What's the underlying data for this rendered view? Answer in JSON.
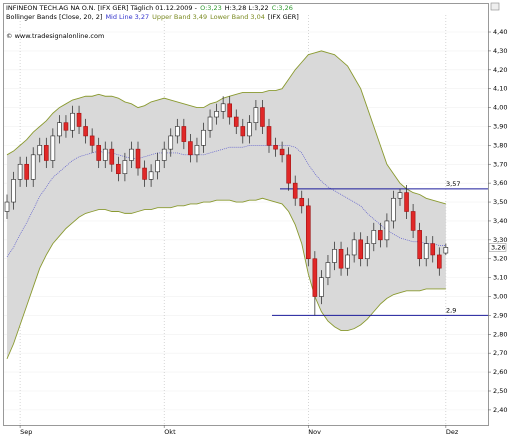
{
  "chart_data": {
    "type": "candlestick",
    "header": [
      [
        {
          "text": "INFINEON TECH.AG NA O.N. [IFX GER]  Täglich 01.12.2009 -",
          "color": "#000000"
        },
        {
          "text": "O:3,23",
          "color": "#2e9a2e"
        },
        {
          "text": "H:3,28 L:3,22",
          "color": "#000000"
        },
        {
          "text": "C:3,26",
          "color": "#2e9a2e"
        }
      ],
      [
        {
          "text": "Bollinger Bands [Close, 20, 2]",
          "color": "#000000"
        },
        {
          "text": "Mid Line 3,27",
          "color": "#3333cc"
        },
        {
          "text": "Upper Band 3,49",
          "color": "#7a8a20"
        },
        {
          "text": "Lower Band 3,04",
          "color": "#7a8a20"
        },
        {
          "text": "[IFX GER]",
          "color": "#000000"
        }
      ]
    ],
    "copyright": "© www.tradesignalonline.com",
    "ylim": [
      2.32,
      4.49
    ],
    "yticks": [
      {
        "value": 2.4,
        "label": "2,40"
      },
      {
        "value": 2.5,
        "label": "2,50"
      },
      {
        "value": 2.6,
        "label": "2,60"
      },
      {
        "value": 2.7,
        "label": "2,70"
      },
      {
        "value": 2.8,
        "label": "2,80"
      },
      {
        "value": 2.9,
        "label": "2,90"
      },
      {
        "value": 3.0,
        "label": "3,00"
      },
      {
        "value": 3.1,
        "label": "3,10"
      },
      {
        "value": 3.2,
        "label": "3,20"
      },
      {
        "value": 3.3,
        "label": "3,30"
      },
      {
        "value": 3.4,
        "label": "3,40"
      },
      {
        "value": 3.5,
        "label": "3,50"
      },
      {
        "value": 3.6,
        "label": "3,60"
      },
      {
        "value": 3.7,
        "label": "3,70"
      },
      {
        "value": 3.8,
        "label": "3,80"
      },
      {
        "value": 3.9,
        "label": "3,90"
      },
      {
        "value": 4.0,
        "label": "4,00"
      },
      {
        "value": 4.1,
        "label": "4,10"
      },
      {
        "value": 4.2,
        "label": "4,20"
      },
      {
        "value": 4.3,
        "label": "4,30"
      },
      {
        "value": 4.4,
        "label": "4,40"
      }
    ],
    "xticks": [
      {
        "value": 2,
        "label": "Sep"
      },
      {
        "value": 24,
        "label": "Okt"
      },
      {
        "value": 46,
        "label": "Nov"
      },
      {
        "value": 67,
        "label": "Dez"
      }
    ],
    "up_color": "#ffffff",
    "down_color": "#e02828",
    "open": [
      3.45,
      3.5,
      3.62,
      3.7,
      3.62,
      3.75,
      3.8,
      3.72,
      3.85,
      3.92,
      3.88,
      3.97,
      3.9,
      3.85,
      3.8,
      3.72,
      3.78,
      3.7,
      3.65,
      3.72,
      3.78,
      3.68,
      3.62,
      3.66,
      3.72,
      3.78,
      3.85,
      3.9,
      3.82,
      3.75,
      3.8,
      3.88,
      3.95,
      3.98,
      4.02,
      3.95,
      3.9,
      3.85,
      3.92,
      4.0,
      3.9,
      3.8,
      3.78,
      3.75,
      3.6,
      3.52,
      3.48,
      3.2,
      3.0,
      3.1,
      3.18,
      3.25,
      3.15,
      3.22,
      3.3,
      3.2,
      3.28,
      3.35,
      3.3,
      3.4,
      3.52,
      3.55,
      3.45,
      3.35,
      3.2,
      3.28,
      3.22,
      3.23
    ],
    "high": [
      3.54,
      3.66,
      3.74,
      3.74,
      3.79,
      3.84,
      3.84,
      3.89,
      3.96,
      3.96,
      4.01,
      4.01,
      3.94,
      3.89,
      3.84,
      3.82,
      3.82,
      3.74,
      3.76,
      3.82,
      3.82,
      3.72,
      3.7,
      3.76,
      3.82,
      3.89,
      3.94,
      3.94,
      3.86,
      3.84,
      3.92,
      3.99,
      4.02,
      4.06,
      4.06,
      3.99,
      3.94,
      3.96,
      4.04,
      4.04,
      3.94,
      3.84,
      3.82,
      3.79,
      3.64,
      3.56,
      3.52,
      3.24,
      3.14,
      3.22,
      3.29,
      3.29,
      3.26,
      3.34,
      3.34,
      3.32,
      3.39,
      3.39,
      3.44,
      3.56,
      3.57,
      3.59,
      3.49,
      3.39,
      3.32,
      3.32,
      3.26,
      3.28
    ],
    "low": [
      3.41,
      3.46,
      3.58,
      3.58,
      3.58,
      3.71,
      3.68,
      3.68,
      3.81,
      3.84,
      3.84,
      3.86,
      3.81,
      3.76,
      3.68,
      3.68,
      3.66,
      3.61,
      3.61,
      3.68,
      3.64,
      3.58,
      3.58,
      3.62,
      3.68,
      3.74,
      3.81,
      3.78,
      3.71,
      3.71,
      3.76,
      3.84,
      3.91,
      3.94,
      3.91,
      3.86,
      3.81,
      3.81,
      3.88,
      3.86,
      3.76,
      3.74,
      3.71,
      3.56,
      3.48,
      3.44,
      3.16,
      2.9,
      2.96,
      3.06,
      3.14,
      3.11,
      3.11,
      3.18,
      3.16,
      3.16,
      3.24,
      3.26,
      3.26,
      3.36,
      3.48,
      3.41,
      3.31,
      3.16,
      3.16,
      3.18,
      3.11,
      3.22
    ],
    "close": [
      3.5,
      3.62,
      3.7,
      3.62,
      3.75,
      3.8,
      3.72,
      3.85,
      3.92,
      3.88,
      3.97,
      3.9,
      3.85,
      3.8,
      3.72,
      3.78,
      3.7,
      3.65,
      3.72,
      3.78,
      3.68,
      3.62,
      3.66,
      3.72,
      3.78,
      3.85,
      3.9,
      3.82,
      3.75,
      3.8,
      3.88,
      3.95,
      3.98,
      4.02,
      3.95,
      3.9,
      3.85,
      3.92,
      4.0,
      3.9,
      3.8,
      3.78,
      3.75,
      3.6,
      3.52,
      3.48,
      3.2,
      3.0,
      3.1,
      3.18,
      3.25,
      3.15,
      3.22,
      3.3,
      3.2,
      3.28,
      3.35,
      3.3,
      3.4,
      3.52,
      3.55,
      3.45,
      3.35,
      3.2,
      3.28,
      3.22,
      3.15,
      3.26
    ],
    "bands": {
      "band_color": "#8a9a30",
      "fill_color": "#d9d9d9",
      "mid_color": "#5a5acc",
      "upper": [
        3.75,
        3.77,
        3.8,
        3.83,
        3.87,
        3.9,
        3.93,
        3.97,
        4.0,
        4.02,
        4.04,
        4.05,
        4.06,
        4.06,
        4.07,
        4.06,
        4.06,
        4.05,
        4.03,
        4.02,
        4.0,
        4.01,
        4.03,
        4.04,
        4.05,
        4.04,
        4.03,
        4.02,
        4.01,
        4.0,
        4.0,
        4.02,
        4.03,
        4.05,
        4.06,
        4.07,
        4.08,
        4.08,
        4.08,
        4.08,
        4.09,
        4.09,
        4.1,
        4.15,
        4.2,
        4.24,
        4.28,
        4.29,
        4.3,
        4.29,
        4.28,
        4.25,
        4.22,
        4.16,
        4.1,
        4.0,
        3.9,
        3.8,
        3.7,
        3.65,
        3.6,
        3.57,
        3.55,
        3.54,
        3.52,
        3.51,
        3.5,
        3.49
      ],
      "mid": [
        3.21,
        3.26,
        3.33,
        3.39,
        3.46,
        3.53,
        3.58,
        3.63,
        3.66,
        3.69,
        3.72,
        3.74,
        3.75,
        3.76,
        3.77,
        3.76,
        3.76,
        3.75,
        3.74,
        3.73,
        3.73,
        3.74,
        3.75,
        3.76,
        3.76,
        3.76,
        3.76,
        3.75,
        3.75,
        3.75,
        3.75,
        3.76,
        3.77,
        3.78,
        3.79,
        3.79,
        3.79,
        3.8,
        3.8,
        3.8,
        3.8,
        3.8,
        3.8,
        3.8,
        3.79,
        3.76,
        3.7,
        3.65,
        3.61,
        3.58,
        3.56,
        3.54,
        3.52,
        3.5,
        3.48,
        3.44,
        3.41,
        3.38,
        3.35,
        3.33,
        3.31,
        3.3,
        3.29,
        3.29,
        3.28,
        3.28,
        3.27,
        3.27
      ],
      "lower": [
        2.67,
        2.75,
        2.85,
        2.95,
        3.05,
        3.15,
        3.22,
        3.28,
        3.32,
        3.36,
        3.39,
        3.42,
        3.44,
        3.45,
        3.46,
        3.46,
        3.45,
        3.45,
        3.44,
        3.44,
        3.45,
        3.46,
        3.46,
        3.47,
        3.47,
        3.47,
        3.48,
        3.48,
        3.49,
        3.49,
        3.5,
        3.5,
        3.51,
        3.51,
        3.51,
        3.5,
        3.5,
        3.51,
        3.51,
        3.52,
        3.51,
        3.5,
        3.49,
        3.45,
        3.38,
        3.28,
        3.12,
        3.0,
        2.92,
        2.87,
        2.84,
        2.82,
        2.82,
        2.83,
        2.85,
        2.88,
        2.92,
        2.96,
        2.99,
        3.01,
        3.02,
        3.03,
        3.03,
        3.03,
        3.04,
        3.04,
        3.04,
        3.04
      ]
    },
    "hlines": [
      {
        "value": 3.57,
        "label": "3,57",
        "color": "#1a1a9a"
      },
      {
        "value": 2.9,
        "label": "2,9",
        "color": "#1a1a9a"
      }
    ],
    "last_price": {
      "value": 3.26,
      "label": "3,26"
    }
  }
}
